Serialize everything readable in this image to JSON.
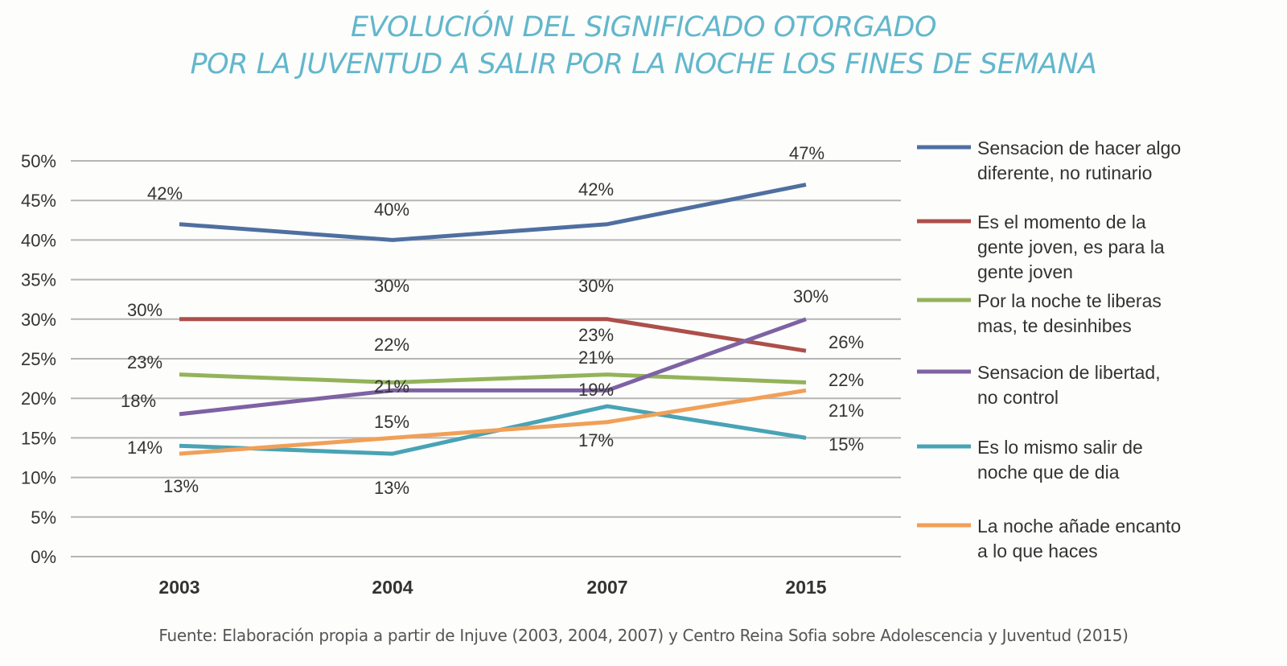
{
  "chart_data": {
    "type": "line",
    "title": [
      "EVOLUCIÓN DEL SIGNIFICADO OTORGADO",
      "POR LA JUVENTUD A SALIR POR LA NOCHE LOS FINES DE SEMANA"
    ],
    "categories": [
      "2003",
      "2004",
      "2007",
      "2015"
    ],
    "ylim": [
      0,
      50
    ],
    "yticks": [
      "0%",
      "5%",
      "10%",
      "15%",
      "20%",
      "25%",
      "30%",
      "35%",
      "40%",
      "45%",
      "50%"
    ],
    "grid": true,
    "legend": "right",
    "data_labels": true,
    "series": [
      {
        "name": "Sensacion de hacer algo diferente, no rutinario",
        "legend_lines": [
          "Sensacion de hacer algo",
          "diferente, no rutinario"
        ],
        "color": "#4f6fa0",
        "values": [
          42,
          40,
          42,
          47
        ]
      },
      {
        "name": "Es el momento de la gente joven, es para la gente joven",
        "legend_lines": [
          "Es el momento de la",
          "gente joven, es para la",
          "gente joven"
        ],
        "color": "#ad4f4a",
        "values": [
          30,
          30,
          30,
          26
        ]
      },
      {
        "name": "Por la noche te liberas mas, te desinhibes",
        "legend_lines": [
          "Por la noche te liberas",
          "mas, te desinhibes"
        ],
        "color": "#93b35a",
        "values": [
          23,
          22,
          23,
          22
        ]
      },
      {
        "name": "Sensacion de libertad, no control",
        "legend_lines": [
          "Sensacion de libertad,",
          "no control"
        ],
        "color": "#7e62a3",
        "values": [
          18,
          21,
          21,
          30
        ]
      },
      {
        "name": "Es lo mismo salir de noche que de dia",
        "legend_lines": [
          "Es lo mismo salir de",
          "noche que de dia"
        ],
        "color": "#48a3b5",
        "values": [
          14,
          13,
          19,
          15
        ]
      },
      {
        "name": "La noche añade encanto a lo que haces",
        "legend_lines": [
          "La noche añade encanto",
          "a lo que haces"
        ],
        "color": "#f0a058",
        "values": [
          13,
          15,
          17,
          21
        ]
      }
    ]
  },
  "source": "Fuente: Elaboración propia a partir de Injuve (2003, 2004, 2007) y Centro Reina Sofia sobre Adolescencia y Juventud (2015)"
}
